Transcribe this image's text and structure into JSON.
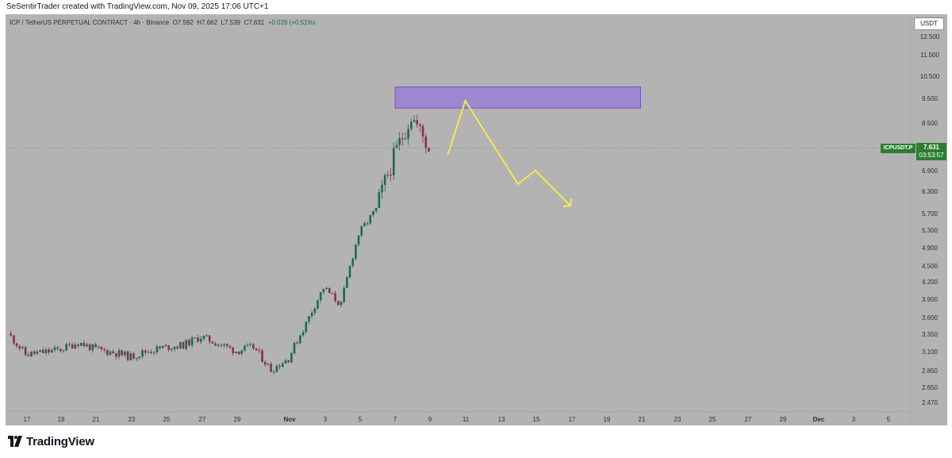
{
  "header": {
    "credit": "SeSentirTrader created with TradingView.com, Nov 09, 2025 17:06 UTC+1"
  },
  "legend": {
    "symbol": "ICP / TetherUS PERPETUAL CONTRACT · 4h · Binance",
    "open": "O7.592",
    "high": "H7.662",
    "low": "L7.539",
    "close": "C7.631",
    "change": "+0.039 (+0.51%)"
  },
  "currency_button": "USDT",
  "price_axis_labels": [
    "12.500",
    "11.500",
    "10.500",
    "9.500",
    "8.500",
    "7.631",
    "6.900",
    "6.300",
    "5.700",
    "5.300",
    "4.900",
    "4.500",
    "4.200",
    "3.900",
    "3.600",
    "3.350",
    "3.100",
    "2.850",
    "2.650",
    "2.470"
  ],
  "time_axis_labels": [
    "17",
    "19",
    "21",
    "23",
    "25",
    "27",
    "29",
    "Nov",
    "3",
    "5",
    "7",
    "9",
    "11",
    "13",
    "15",
    "17",
    "19",
    "21",
    "23",
    "25",
    "27",
    "29",
    "Dec",
    "3",
    "5"
  ],
  "symbol_tag": "ICPUSDT.P",
  "last_price": {
    "price": "7.631",
    "countdown": "03:53:57"
  },
  "colors": {
    "up": "#1e6b47",
    "down": "#8c2f49",
    "zone": "#9b7fd4",
    "projection": "#f2e94e",
    "last_price_bg": "#2e7d32"
  },
  "footer": {
    "logo_text": "TradingView",
    "logo_icon": "tradingview-logo-icon"
  },
  "chart_data": {
    "type": "candlestick",
    "symbol": "ICP / TetherUS PERPETUAL CONTRACT",
    "interval": "4h",
    "exchange": "Binance",
    "scale": "log",
    "y_range": [
      2.35,
      13.0
    ],
    "close_path": [
      {
        "date": "2025-10-16",
        "close": 3.35
      },
      {
        "date": "2025-10-17",
        "close": 3.05
      },
      {
        "date": "2025-10-18",
        "close": 3.08
      },
      {
        "date": "2025-10-19",
        "close": 3.12
      },
      {
        "date": "2025-10-20",
        "close": 3.22
      },
      {
        "date": "2025-10-21",
        "close": 3.12
      },
      {
        "date": "2025-10-22",
        "close": 3.08
      },
      {
        "date": "2025-10-23",
        "close": 3.02
      },
      {
        "date": "2025-10-24",
        "close": 3.1
      },
      {
        "date": "2025-10-25",
        "close": 3.15
      },
      {
        "date": "2025-10-26",
        "close": 3.18
      },
      {
        "date": "2025-10-27",
        "close": 3.3
      },
      {
        "date": "2025-10-28",
        "close": 3.2
      },
      {
        "date": "2025-10-29",
        "close": 3.1
      },
      {
        "date": "2025-10-30",
        "close": 3.15
      },
      {
        "date": "2025-10-31",
        "close": 2.85
      },
      {
        "date": "2025-11-01",
        "close": 3.0
      },
      {
        "date": "2025-11-02",
        "close": 3.5
      },
      {
        "date": "2025-11-03",
        "close": 4.1
      },
      {
        "date": "2025-11-04",
        "close": 3.8
      },
      {
        "date": "2025-11-05",
        "close": 5.2
      },
      {
        "date": "2025-11-06",
        "close": 5.8
      },
      {
        "date": "2025-11-07",
        "close": 7.3
      },
      {
        "date": "2025-11-08",
        "close": 8.8
      },
      {
        "date": "2025-11-09",
        "close": 7.63
      }
    ],
    "zone": {
      "date_from": "2025-11-07",
      "date_to": "2025-11-21",
      "price_low": 9.1,
      "price_high": 10.0
    },
    "projection": [
      {
        "date": "2025-11-10",
        "price": 7.4
      },
      {
        "date": "2025-11-11",
        "price": 9.4
      },
      {
        "date": "2025-11-14",
        "price": 6.5
      },
      {
        "date": "2025-11-15",
        "price": 6.9
      },
      {
        "date": "2025-11-17",
        "price": 5.9
      }
    ]
  }
}
